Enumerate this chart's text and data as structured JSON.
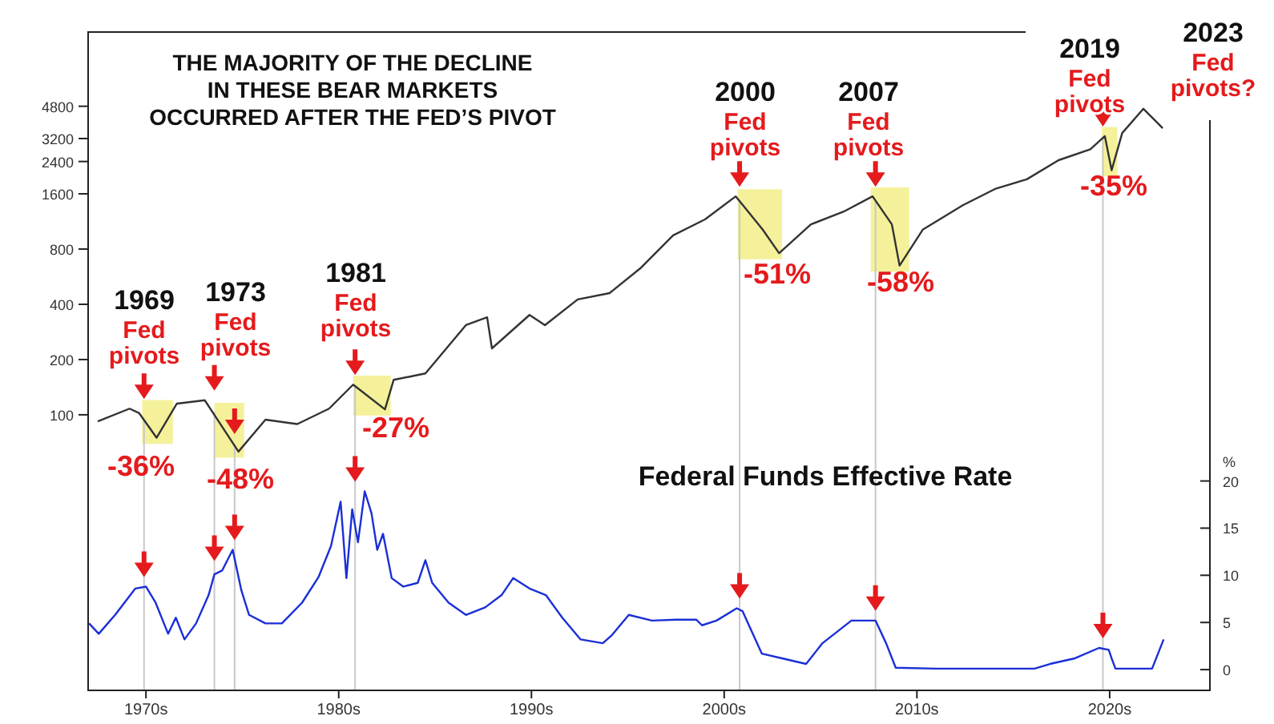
{
  "chart_data": {
    "type": "line",
    "title": "THE MAJORITY OF THE DECLINE\nIN THESE BEAR MARKETS\nOCCURRED AFTER THE FED’S PIVOT",
    "y2label": "%",
    "log": "y",
    "xlim": [
      1967,
      2025.2
    ],
    "xticks": [
      {
        "value": 1970,
        "label": "1970s"
      },
      {
        "value": 1980,
        "label": "1980s"
      },
      {
        "value": 1990,
        "label": "1990s"
      },
      {
        "value": 2000,
        "label": "2000s"
      },
      {
        "value": 2010,
        "label": "2010s"
      },
      {
        "value": 2020,
        "label": "2020s"
      }
    ],
    "ylim": [
      3.15,
      12180
    ],
    "yticks": [
      100,
      200,
      400,
      800,
      1600,
      2400,
      3200,
      4800
    ],
    "y2lim": [
      -2.2,
      67.6
    ],
    "y2ticks": [
      0,
      5,
      10,
      15,
      20
    ],
    "series": [
      {
        "color": "#333333",
        "x": [
          1967.5,
          1969.15,
          1969.65,
          1970.55,
          1971.6,
          1973.05,
          1974.8,
          1976.2,
          1977.85,
          1979.5,
          1980.75,
          1982.4,
          1982.85,
          1984.5,
          1986.6,
          1987.7,
          1987.95,
          1989.9,
          1990.7,
          1992.4,
          1994.05,
          1995.7,
          1997.35,
          1999.0,
          2000.6,
          2002.0,
          2002.85,
          2004.5,
          2006.2,
          2007.7,
          2008.7,
          2009.1,
          2010.3,
          2012.4,
          2014.05,
          2015.7,
          2017.35,
          2019.0,
          2019.75,
          2020.1,
          2020.65,
          2021.75,
          2022.5,
          2022.75
        ],
        "values": [
          92,
          108,
          102,
          75,
          115,
          120,
          63,
          94,
          89,
          108,
          146,
          107,
          155,
          168,
          308,
          340,
          230,
          350,
          308,
          425,
          460,
          635,
          950,
          1160,
          1550,
          1020,
          760,
          1090,
          1280,
          1550,
          1090,
          650,
          1020,
          1390,
          1700,
          1920,
          2440,
          2800,
          3300,
          2150,
          3430,
          4650,
          3880,
          3640
        ]
      },
      {
        "axis": "y2",
        "name": "Federal Funds Effective Rate",
        "color": "#1a2fd6",
        "x": [
          1967.05,
          1967.55,
          1968.4,
          1969.45,
          1970.0,
          1970.5,
          1971.15,
          1971.55,
          1972.0,
          1972.6,
          1973.25,
          1973.55,
          1973.95,
          1974.5,
          1974.95,
          1975.35,
          1976.2,
          1977.05,
          1978.1,
          1978.95,
          1979.6,
          1980.1,
          1980.4,
          1980.7,
          1981.0,
          1981.35,
          1981.7,
          1982.0,
          1982.3,
          1982.75,
          1983.35,
          1984.1,
          1984.5,
          1984.85,
          1985.7,
          1986.6,
          1987.6,
          1988.45,
          1989.05,
          1989.9,
          1990.75,
          1991.6,
          1992.55,
          1993.7,
          1994.15,
          1995.05,
          1996.25,
          1997.5,
          1998.55,
          1998.85,
          1999.6,
          2000.65,
          2000.95,
          2001.95,
          2003.0,
          2004.25,
          2005.1,
          2006.6,
          2007.85,
          2008.4,
          2008.9,
          2011.0,
          2016.1,
          2016.9,
          2018.2,
          2019.45,
          2019.95,
          2020.1,
          2020.3,
          2022.2,
          2022.8
        ],
        "values": [
          4.9,
          3.8,
          5.8,
          8.6,
          8.8,
          7.1,
          3.8,
          5.5,
          3.2,
          4.9,
          7.9,
          10.1,
          10.5,
          12.7,
          8.4,
          5.8,
          4.9,
          4.9,
          7.1,
          9.8,
          13.1,
          17.8,
          9.7,
          17.0,
          13.5,
          18.9,
          16.6,
          12.7,
          14.4,
          9.7,
          8.8,
          9.2,
          11.6,
          9.2,
          7.1,
          5.8,
          6.6,
          7.9,
          9.7,
          8.6,
          7.9,
          5.5,
          3.2,
          2.8,
          3.6,
          5.8,
          5.2,
          5.3,
          5.3,
          4.7,
          5.2,
          6.5,
          6.2,
          1.7,
          1.2,
          0.6,
          2.8,
          5.2,
          5.2,
          2.8,
          0.2,
          0.1,
          0.1,
          0.6,
          1.2,
          2.3,
          2.1,
          1.2,
          0.1,
          0.1,
          3.2
        ]
      }
    ],
    "ref_lines": [
      {
        "axis": "x",
        "value": 1969.9,
        "color": "#c8c8c8"
      },
      {
        "axis": "x",
        "value": 1973.55,
        "color": "#c8c8c8"
      },
      {
        "axis": "x",
        "value": 1974.6,
        "color": "#c8c8c8"
      },
      {
        "axis": "x",
        "value": 1980.85,
        "color": "#c8c8c8"
      },
      {
        "axis": "x",
        "value": 2000.8,
        "color": "#c8c8c8"
      },
      {
        "axis": "x",
        "value": 2007.85,
        "color": "#c8c8c8"
      },
      {
        "axis": "x",
        "value": 2019.65,
        "color": "#c8c8c8"
      }
    ],
    "bands": [
      {
        "axis": "x",
        "from": 1969.8,
        "to": 1971.4,
        "color": "#f3ef8a"
      },
      {
        "axis": "x",
        "from": 1973.55,
        "to": 1975.1,
        "color": "#f3ef8a"
      },
      {
        "axis": "x",
        "from": 1980.75,
        "to": 1982.7,
        "color": "#f3ef8a"
      },
      {
        "axis": "x",
        "from": 2000.7,
        "to": 2003.0,
        "color": "#f3ef8a"
      },
      {
        "axis": "x",
        "from": 2007.6,
        "to": 2009.6,
        "color": "#f3ef8a"
      },
      {
        "axis": "x",
        "from": 2019.6,
        "to": 2020.4,
        "color": "#f3ef8a"
      }
    ],
    "annotations": [
      "1969\nFed\npivots",
      "1973\nFed\npivots",
      "1981\nFed\npivots",
      "2000\nFed\npivots",
      "2007\nFed\npivots",
      "2019\nFed\npivots",
      "2023\nFed\npivots?",
      "-36%",
      "-48%",
      "-27%",
      "-51%",
      "-58%",
      "-35%"
    ]
  }
}
